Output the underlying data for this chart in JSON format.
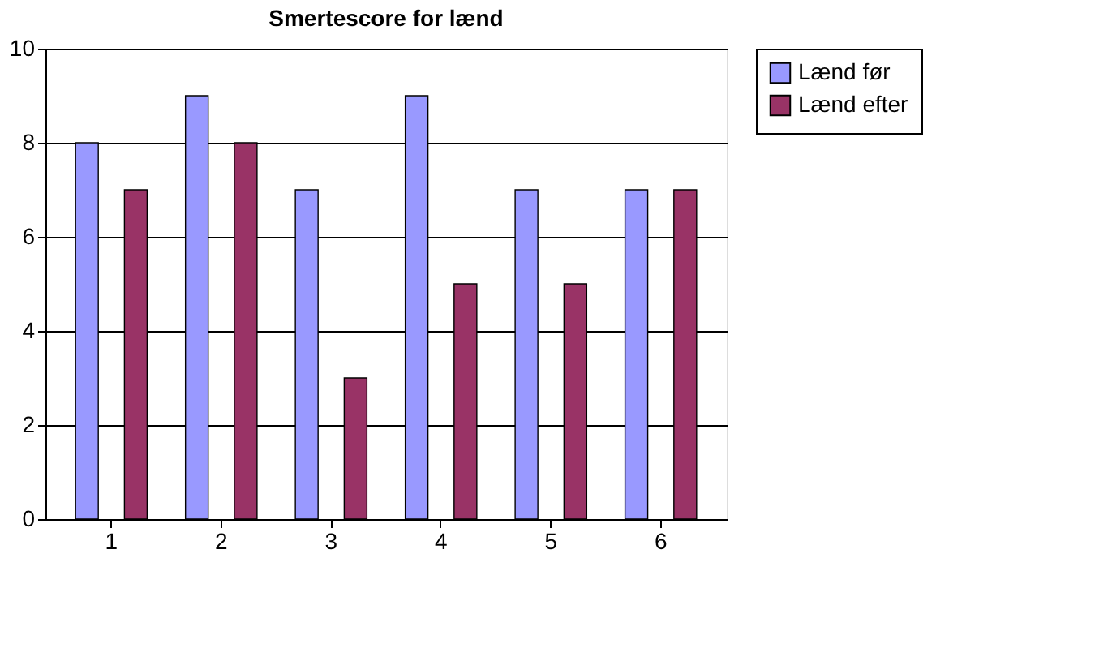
{
  "chart_data": {
    "type": "bar",
    "title": "Smertescore for lænd",
    "categories": [
      "1",
      "2",
      "3",
      "4",
      "5",
      "6"
    ],
    "series": [
      {
        "name": "Lænd før",
        "color": "#9999ff",
        "values": [
          8,
          9,
          7,
          9,
          7,
          7
        ]
      },
      {
        "name": "Lænd efter",
        "color": "#993366",
        "values": [
          7,
          8,
          3,
          5,
          5,
          7
        ]
      }
    ],
    "ylim": [
      0,
      10
    ],
    "yticks": [
      0,
      2,
      4,
      6,
      8,
      10
    ],
    "grid": "y",
    "legend": "right"
  }
}
